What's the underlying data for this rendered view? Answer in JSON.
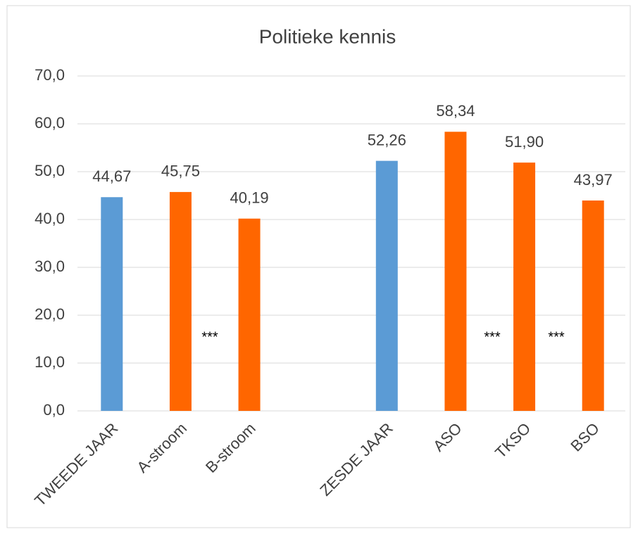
{
  "chart_data": {
    "type": "bar",
    "title": "Politieke kennis",
    "categories": [
      "TWEEDE JAAR",
      "A-stroom",
      "B-stroom",
      null,
      "ZESDE JAAR",
      "ASO",
      "TKSO",
      "BSO"
    ],
    "values": [
      44.67,
      45.75,
      40.19,
      null,
      52.26,
      58.34,
      51.9,
      43.97
    ],
    "value_labels": [
      "44,67",
      "45,75",
      "40,19",
      null,
      "52,26",
      "58,34",
      "51,90",
      "43,97"
    ],
    "colors": [
      "#5b9bd5",
      "#ff6600",
      "#ff6600",
      null,
      "#5b9bd5",
      "#ff6600",
      "#ff6600",
      "#ff6600"
    ],
    "ylim": [
      0,
      70
    ],
    "yticks": [
      {
        "value": 0,
        "label": "0,0"
      },
      {
        "value": 10,
        "label": "10,0"
      },
      {
        "value": 20,
        "label": "20,0"
      },
      {
        "value": 30,
        "label": "30,0"
      },
      {
        "value": 40,
        "label": "40,0"
      },
      {
        "value": 50,
        "label": "50,0"
      },
      {
        "value": 60,
        "label": "60,0"
      },
      {
        "value": 70,
        "label": "70,0"
      }
    ],
    "annotations": [
      "***",
      "***",
      "***"
    ],
    "grid": true
  }
}
